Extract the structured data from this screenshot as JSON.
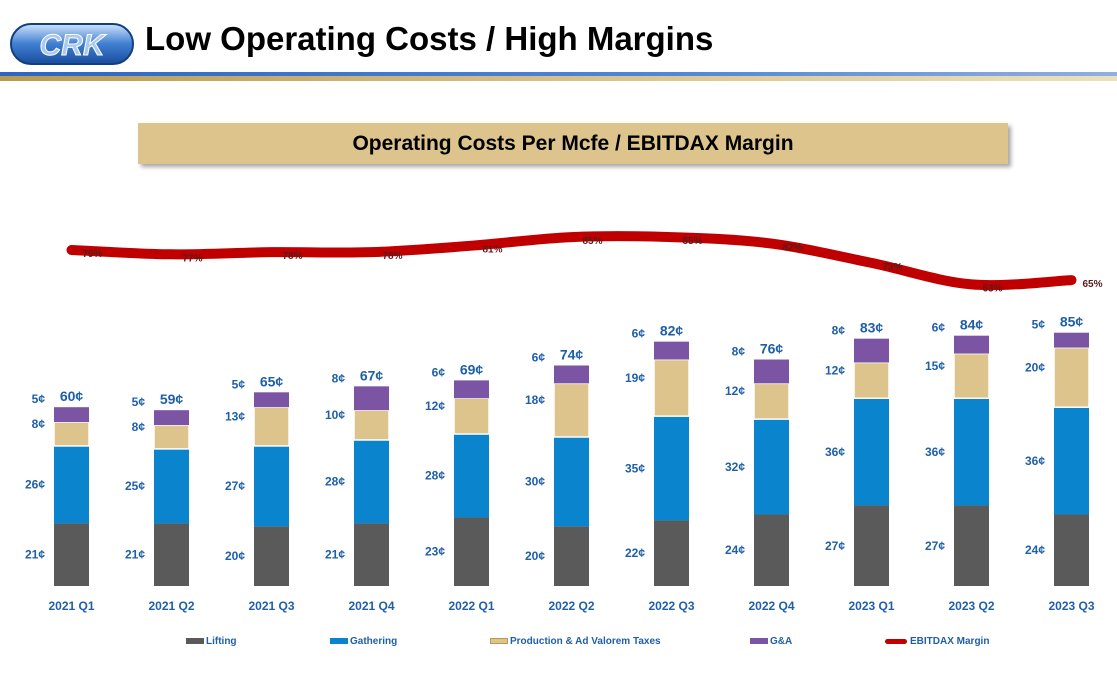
{
  "header": {
    "logo_text": "CRK",
    "title": "Low Operating Costs / High Margins"
  },
  "chart_title": "Operating Costs Per Mcfe / EBITDAX Margin",
  "colors": {
    "lifting": "#5a5a5a",
    "gathering": "#0a84cc",
    "taxes": "#dcc48c",
    "ga": "#7b55a3",
    "margin": "#c00000",
    "label": "#1f5fa8"
  },
  "chart_data": {
    "type": "bar",
    "stacked": true,
    "unit": "¢",
    "categories": [
      "2021 Q1",
      "2021 Q2",
      "2021 Q3",
      "2021 Q4",
      "2022 Q1",
      "2022 Q2",
      "2022 Q3",
      "2022 Q4",
      "2023 Q1",
      "2023 Q2",
      "2023 Q3"
    ],
    "series": [
      {
        "name": "Lifting",
        "values": [
          21,
          21,
          20,
          21,
          23,
          20,
          22,
          24,
          27,
          27,
          24
        ]
      },
      {
        "name": "Gathering",
        "values": [
          26,
          25,
          27,
          28,
          28,
          30,
          35,
          32,
          36,
          36,
          36
        ]
      },
      {
        "name": "Production & Ad Valorem Taxes",
        "values": [
          8,
          8,
          13,
          10,
          12,
          18,
          19,
          12,
          12,
          15,
          20
        ]
      },
      {
        "name": "G&A",
        "values": [
          5,
          5,
          5,
          8,
          6,
          6,
          6,
          8,
          8,
          6,
          5
        ]
      }
    ],
    "totals": [
      60,
      59,
      65,
      67,
      69,
      74,
      82,
      76,
      83,
      84,
      85
    ],
    "line_series": {
      "name": "EBITDAX Margin",
      "values": [
        79,
        77,
        78,
        78,
        81,
        85,
        85,
        82,
        73,
        63,
        65
      ],
      "unit": "%"
    },
    "legend": [
      "Lifting",
      "Gathering",
      "Production & Ad Valorem Taxes",
      "G&A",
      "EBITDAX Margin"
    ],
    "legend_position": "bottom"
  }
}
